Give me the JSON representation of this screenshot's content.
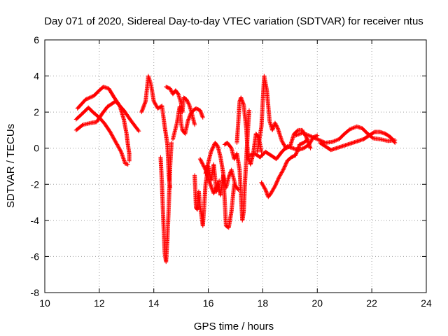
{
  "chart_data": {
    "type": "scatter",
    "title": "Day 071 of 2020, Sidereal Day-to-day VTEC variation (SDTVAR) for receiver ntus",
    "xlabel": "GPS time / hours",
    "ylabel": "SDTVAR / TECUs",
    "xlim": [
      10,
      24
    ],
    "ylim": [
      -8,
      6
    ],
    "xticks": [
      "10",
      "12",
      "14",
      "16",
      "18",
      "20",
      "22",
      "24"
    ],
    "yticks": [
      "-8",
      "-6",
      "-4",
      "-2",
      "0",
      "2",
      "4",
      "6"
    ],
    "grid": true,
    "marker": "+",
    "series_color": "#ff0000",
    "tracks": [
      [
        [
          11.15,
          1.0
        ],
        [
          11.4,
          1.3
        ],
        [
          11.7,
          1.4
        ],
        [
          11.9,
          1.45
        ],
        [
          12.1,
          1.9
        ],
        [
          12.3,
          2.3
        ],
        [
          12.6,
          2.6
        ],
        [
          12.9,
          2.1
        ],
        [
          13.15,
          1.55
        ],
        [
          13.45,
          0.95
        ]
      ],
      [
        [
          11.2,
          2.2
        ],
        [
          11.5,
          2.7
        ],
        [
          11.8,
          2.9
        ],
        [
          12.0,
          3.2
        ],
        [
          12.15,
          3.4
        ],
        [
          12.35,
          3.3
        ],
        [
          12.55,
          2.8
        ],
        [
          12.75,
          2.35
        ],
        [
          12.9,
          1.6
        ],
        [
          13.0,
          0.8
        ],
        [
          13.05,
          0.2
        ],
        [
          13.1,
          -0.3
        ],
        [
          13.1,
          -0.7
        ]
      ],
      [
        [
          11.15,
          1.6
        ],
        [
          11.4,
          1.95
        ],
        [
          11.6,
          2.25
        ],
        [
          11.8,
          1.95
        ],
        [
          12.0,
          1.7
        ],
        [
          12.2,
          1.35
        ],
        [
          12.4,
          0.9
        ],
        [
          12.6,
          0.35
        ],
        [
          12.8,
          -0.2
        ],
        [
          12.95,
          -0.85
        ],
        [
          13.05,
          -0.9
        ]
      ],
      [
        [
          13.55,
          2.0
        ],
        [
          13.7,
          2.6
        ],
        [
          13.8,
          4.0
        ],
        [
          13.9,
          3.5
        ],
        [
          14.0,
          2.6
        ],
        [
          14.15,
          2.2
        ],
        [
          14.3,
          2.35
        ],
        [
          14.4,
          1.2
        ],
        [
          14.5,
          0.2
        ],
        [
          14.55,
          -1.5
        ],
        [
          14.6,
          -2.2
        ]
      ],
      [
        [
          14.25,
          -0.5
        ],
        [
          14.3,
          -2.0
        ],
        [
          14.35,
          -4.0
        ],
        [
          14.4,
          -5.8
        ],
        [
          14.45,
          -6.3
        ],
        [
          14.5,
          -5.0
        ],
        [
          14.55,
          -3.2
        ],
        [
          14.6,
          -1.0
        ],
        [
          14.65,
          0.3
        ]
      ],
      [
        [
          14.45,
          3.4
        ],
        [
          14.6,
          3.3
        ],
        [
          14.7,
          3.0
        ],
        [
          14.8,
          3.2
        ],
        [
          14.9,
          3.0
        ],
        [
          15.0,
          2.5
        ],
        [
          15.05,
          2.0
        ],
        [
          15.1,
          2.8
        ],
        [
          15.2,
          2.7
        ],
        [
          15.3,
          2.4
        ],
        [
          15.4,
          1.9
        ],
        [
          15.5,
          1.3
        ]
      ],
      [
        [
          14.7,
          0.5
        ],
        [
          14.85,
          1.4
        ],
        [
          14.95,
          2.3
        ],
        [
          15.0,
          1.4
        ],
        [
          15.05,
          1.0
        ],
        [
          15.15,
          0.8
        ],
        [
          15.25,
          1.5
        ],
        [
          15.35,
          1.9
        ],
        [
          15.45,
          2.1
        ],
        [
          15.55,
          2.2
        ],
        [
          15.7,
          2.1
        ],
        [
          15.8,
          1.7
        ]
      ],
      [
        [
          15.5,
          -1.5
        ],
        [
          15.55,
          -3.3
        ],
        [
          15.6,
          -3.4
        ],
        [
          15.65,
          -2.4
        ],
        [
          15.7,
          -3.2
        ],
        [
          15.8,
          -4.3
        ],
        [
          15.85,
          -3.2
        ],
        [
          15.9,
          -2.0
        ],
        [
          16.0,
          -1.0
        ],
        [
          16.1,
          -1.8
        ],
        [
          16.2,
          -0.9
        ],
        [
          16.3,
          -2.4
        ],
        [
          16.4,
          -1.8
        ]
      ],
      [
        [
          15.7,
          -0.6
        ],
        [
          15.9,
          -1.2
        ],
        [
          16.05,
          -1.9
        ],
        [
          16.2,
          -2.5
        ],
        [
          16.35,
          -2.0
        ],
        [
          16.45,
          -2.6
        ],
        [
          16.55,
          -1.5
        ],
        [
          16.65,
          -2.2
        ],
        [
          16.75,
          -1.6
        ],
        [
          16.85,
          -1.2
        ],
        [
          17.0,
          -2.1
        ],
        [
          17.1,
          -2.3
        ]
      ],
      [
        [
          15.9,
          -1.4
        ],
        [
          16.1,
          -0.2
        ],
        [
          16.25,
          0.3
        ],
        [
          16.35,
          0.1
        ],
        [
          16.45,
          -0.5
        ],
        [
          16.55,
          -1.4
        ],
        [
          16.65,
          -4.3
        ],
        [
          16.75,
          -4.4
        ],
        [
          16.85,
          -3.5
        ],
        [
          16.95,
          -2.0
        ]
      ],
      [
        [
          16.6,
          0.2
        ],
        [
          16.7,
          0.3
        ],
        [
          16.85,
          0.0
        ],
        [
          16.95,
          -0.6
        ],
        [
          17.05,
          -0.3
        ],
        [
          17.15,
          -1.2
        ],
        [
          17.2,
          -2.6
        ],
        [
          17.25,
          -4.0
        ],
        [
          17.3,
          -3.5
        ],
        [
          17.35,
          -1.8
        ],
        [
          17.45,
          0.9
        ],
        [
          17.5,
          2.1
        ]
      ],
      [
        [
          17.05,
          0.3
        ],
        [
          17.15,
          2.6
        ],
        [
          17.2,
          2.8
        ],
        [
          17.3,
          2.4
        ],
        [
          17.4,
          1.0
        ],
        [
          17.45,
          -0.4
        ],
        [
          17.55,
          -0.9
        ],
        [
          17.65,
          -0.3
        ],
        [
          17.75,
          0.8
        ],
        [
          17.85,
          0.6
        ],
        [
          17.95,
          -0.2
        ]
      ],
      [
        [
          17.8,
          -0.2
        ],
        [
          17.95,
          1.2
        ],
        [
          18.05,
          4.0
        ],
        [
          18.15,
          3.2
        ],
        [
          18.25,
          1.5
        ],
        [
          18.35,
          1.0
        ],
        [
          18.45,
          1.4
        ],
        [
          18.55,
          1.1
        ],
        [
          18.7,
          0.4
        ],
        [
          18.85,
          0.0
        ],
        [
          19.0,
          0.1
        ],
        [
          19.15,
          0.8
        ],
        [
          19.3,
          1.0
        ],
        [
          19.45,
          1.0
        ],
        [
          19.6,
          0.6
        ],
        [
          19.75,
          0.0
        ]
      ],
      [
        [
          17.95,
          -1.9
        ],
        [
          18.1,
          -2.3
        ],
        [
          18.2,
          -2.7
        ],
        [
          18.3,
          -2.5
        ],
        [
          18.45,
          -2.1
        ],
        [
          18.6,
          -1.6
        ],
        [
          18.75,
          -1.2
        ],
        [
          18.9,
          -0.7
        ],
        [
          19.05,
          -0.5
        ],
        [
          19.2,
          -0.4
        ],
        [
          19.35,
          0.2
        ],
        [
          19.5,
          0.3
        ],
        [
          19.65,
          0.5
        ]
      ],
      [
        [
          17.5,
          -0.4
        ],
        [
          17.7,
          -0.3
        ],
        [
          17.9,
          -0.5
        ],
        [
          18.1,
          -0.2
        ],
        [
          18.3,
          -0.4
        ],
        [
          18.5,
          -0.6
        ],
        [
          18.7,
          -0.2
        ],
        [
          18.9,
          0.1
        ],
        [
          19.1,
          0.0
        ],
        [
          19.3,
          -0.1
        ],
        [
          19.5,
          0.0
        ],
        [
          19.7,
          0.2
        ],
        [
          19.85,
          0.6
        ],
        [
          20.0,
          0.7
        ]
      ],
      [
        [
          19.2,
          0.7
        ],
        [
          19.45,
          0.85
        ],
        [
          19.7,
          0.7
        ],
        [
          20.0,
          0.5
        ],
        [
          20.3,
          0.3
        ],
        [
          20.55,
          0.35
        ],
        [
          20.8,
          0.5
        ],
        [
          21.0,
          0.8
        ],
        [
          21.2,
          1.05
        ],
        [
          21.45,
          1.2
        ],
        [
          21.65,
          1.1
        ],
        [
          21.85,
          0.8
        ],
        [
          22.05,
          0.55
        ],
        [
          22.3,
          0.5
        ],
        [
          22.6,
          0.4
        ],
        [
          22.85,
          0.45
        ]
      ],
      [
        [
          20.1,
          0.3
        ],
        [
          20.3,
          0.1
        ],
        [
          20.5,
          -0.1
        ],
        [
          20.7,
          0.0
        ],
        [
          20.9,
          0.1
        ],
        [
          21.1,
          0.2
        ],
        [
          21.3,
          0.3
        ],
        [
          21.5,
          0.4
        ],
        [
          21.7,
          0.5
        ],
        [
          21.9,
          0.7
        ],
        [
          22.1,
          0.9
        ],
        [
          22.3,
          0.9
        ],
        [
          22.5,
          0.8
        ],
        [
          22.7,
          0.6
        ],
        [
          22.85,
          0.3
        ]
      ]
    ]
  }
}
